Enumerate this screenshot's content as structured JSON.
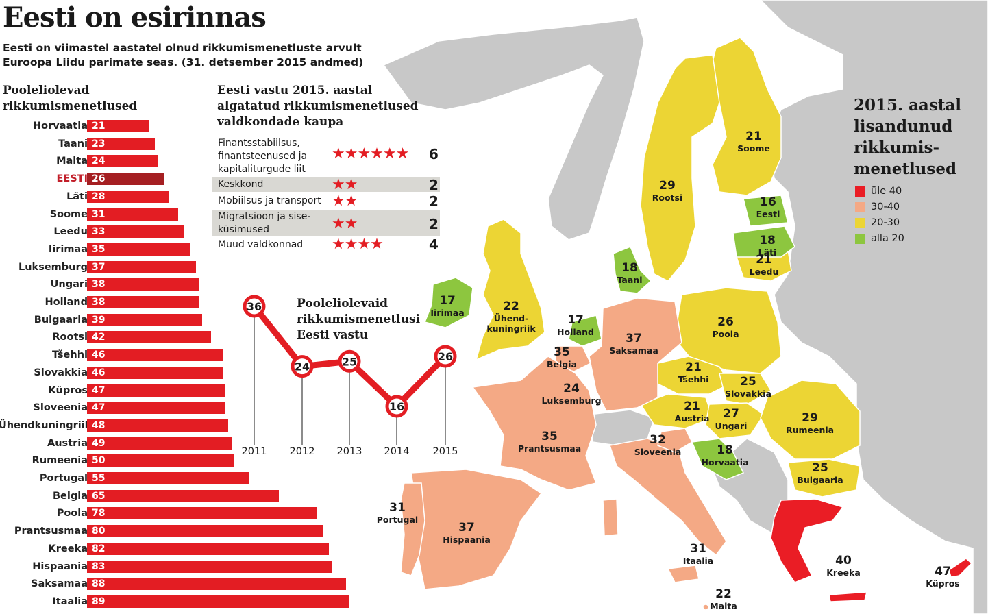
{
  "header": {
    "title": "Eesti on esirinnas",
    "subtitle_lines": [
      "Eesti on viimastel aastatel olnud rikkumismenetluste arvult",
      "Euroopa Liidu parimate seas. (31. detsember 2015 andmed)"
    ]
  },
  "colors": {
    "red": "#e31d23",
    "dark_red": "#a51f22",
    "over40": "#ea1d25",
    "range30_40": "#f4a985",
    "range20_30": "#ecd534",
    "under20": "#8dc63f",
    "non_eu": "#c8c8c8"
  },
  "bars_section": {
    "title_lines": [
      "Pooleliolevad",
      "rikkumismenetlused"
    ]
  },
  "fields_section": {
    "title_lines": [
      "Eesti vastu 2015. aastal",
      "algatatud rikkumismenetlused",
      "valdkondade kaupa"
    ],
    "rows": [
      {
        "label_lines": [
          "Finantsstabiilsus,",
          "finantsteenused ja",
          "kapitaliturgude liit"
        ],
        "count": 6,
        "stars": "★★★★★★",
        "count_text": "6"
      },
      {
        "label_lines": [
          "Keskkond"
        ],
        "count": 2,
        "stars": "★★",
        "count_text": "2"
      },
      {
        "label_lines": [
          "Mobiilsus ja transport"
        ],
        "count": 2,
        "stars": "★★",
        "count_text": "2"
      },
      {
        "label_lines": [
          "Migratsioon ja sise-",
          "küsimused"
        ],
        "count": 2,
        "stars": "★★",
        "count_text": "2"
      },
      {
        "label_lines": [
          "Muud valdkonnad"
        ],
        "count": 4,
        "stars": "★★★★",
        "count_text": "4"
      }
    ]
  },
  "line_section": {
    "title_lines": [
      "Pooleliolevaid",
      "rikkumismenetlusi",
      "Eesti vastu"
    ]
  },
  "legend": {
    "title_lines": [
      "2015. aastal",
      "lisandunud",
      "rikkumis-",
      "menetlused"
    ],
    "items": [
      {
        "label": "üle 40",
        "color": "#ea1d25"
      },
      {
        "label": "30-40",
        "color": "#f4a985"
      },
      {
        "label": "20-30",
        "color": "#ecd534"
      },
      {
        "label": "alla 20",
        "color": "#8dc63f"
      }
    ]
  },
  "map_labels": [
    {
      "name": "Soome",
      "value": "21"
    },
    {
      "name": "Rootsi",
      "value": "29"
    },
    {
      "name": "Eesti",
      "value": "16"
    },
    {
      "name": "Läti",
      "value": "18"
    },
    {
      "name": "Leedu",
      "value": "21"
    },
    {
      "name": "Taani",
      "value": "18"
    },
    {
      "name": "Iirimaa",
      "value": "17"
    },
    {
      "name": "Ühend-\nkuningriik",
      "value": "22"
    },
    {
      "name": "Holland",
      "value": "17"
    },
    {
      "name": "Belgia",
      "value": "35"
    },
    {
      "name": "Luksemburg",
      "value": "24"
    },
    {
      "name": "Saksamaa",
      "value": "37"
    },
    {
      "name": "Poola",
      "value": "26"
    },
    {
      "name": "Tšehhi",
      "value": "21"
    },
    {
      "name": "Slovakkia",
      "value": "25"
    },
    {
      "name": "Austria",
      "value": "21"
    },
    {
      "name": "Ungari",
      "value": "27"
    },
    {
      "name": "Rumeenia",
      "value": "29"
    },
    {
      "name": "Sloveenia",
      "value": "32"
    },
    {
      "name": "Horvaatia",
      "value": "18"
    },
    {
      "name": "Bulgaaria",
      "value": "25"
    },
    {
      "name": "Prantsusmaa",
      "value": "35"
    },
    {
      "name": "Portugal",
      "value": "31"
    },
    {
      "name": "Hispaania",
      "value": "37"
    },
    {
      "name": "Itaalia",
      "value": "31"
    },
    {
      "name": "Malta",
      "value": "22"
    },
    {
      "name": "Kreeka",
      "value": "40"
    },
    {
      "name": "Küpros",
      "value": "47"
    }
  ],
  "chart_data": [
    {
      "type": "bar",
      "orientation": "horizontal",
      "title": "Pooleliolevad rikkumismenetlused",
      "categories": [
        "Horvaatia",
        "Taani",
        "Malta",
        "EESTI",
        "Läti",
        "Soome",
        "Leedu",
        "Iirimaa",
        "Luksemburg",
        "Ungari",
        "Holland",
        "Bulgaaria",
        "Rootsi",
        "Tšehhi",
        "Slovakkia",
        "Küpros",
        "Sloveenia",
        "Ühendkuningriik",
        "Austria",
        "Rumeenia",
        "Portugal",
        "Belgia",
        "Poola",
        "Prantsusmaa",
        "Kreeka",
        "Hispaania",
        "Saksamaa",
        "Itaalia"
      ],
      "values": [
        21,
        23,
        24,
        26,
        28,
        31,
        33,
        35,
        37,
        38,
        38,
        39,
        42,
        46,
        46,
        47,
        47,
        48,
        49,
        50,
        55,
        65,
        78,
        80,
        82,
        83,
        88,
        89
      ],
      "highlight": "EESTI",
      "xlabel": "",
      "ylabel": ""
    },
    {
      "type": "line",
      "title": "Pooleliolevaid rikkumismenetlusi Eesti vastu",
      "x": [
        "2011",
        "2012",
        "2013",
        "2014",
        "2015"
      ],
      "values": [
        36,
        24,
        25,
        16,
        26
      ],
      "ylim": [
        10,
        40
      ],
      "xlabel": "",
      "ylabel": ""
    }
  ]
}
